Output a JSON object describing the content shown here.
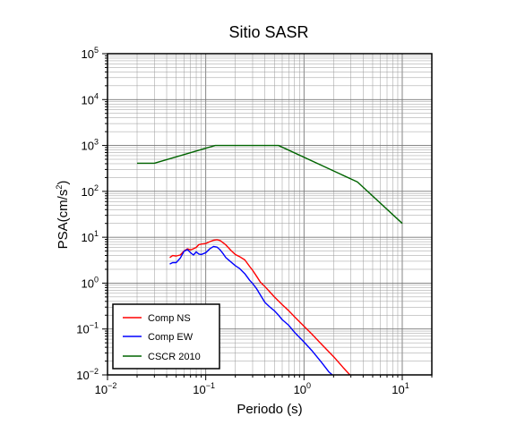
{
  "chart_data": {
    "type": "line",
    "title": "Sitio SASR",
    "xlabel": "Periodo (s)",
    "ylabel_base": "PSA(cm/s",
    "ylabel_sup": "2",
    "ylabel_tail": ")",
    "xscale": "log",
    "yscale": "log",
    "xlim": [
      0.01,
      20
    ],
    "ylim": [
      0.01,
      100000
    ],
    "x_ticks": [
      {
        "base": "10",
        "exp": "−2",
        "value": 0.01
      },
      {
        "base": "10",
        "exp": "−1",
        "value": 0.1
      },
      {
        "base": "10",
        "exp": "0",
        "value": 1
      },
      {
        "base": "10",
        "exp": "1",
        "value": 10
      }
    ],
    "y_ticks": [
      {
        "base": "10",
        "exp": "−2",
        "value": 0.01
      },
      {
        "base": "10",
        "exp": "−1",
        "value": 0.1
      },
      {
        "base": "10",
        "exp": "0",
        "value": 1
      },
      {
        "base": "10",
        "exp": "1",
        "value": 10
      },
      {
        "base": "10",
        "exp": "2",
        "value": 100
      },
      {
        "base": "10",
        "exp": "3",
        "value": 1000
      },
      {
        "base": "10",
        "exp": "4",
        "value": 10000
      },
      {
        "base": "10",
        "exp": "5",
        "value": 100000
      }
    ],
    "grid": true,
    "legend_position": "bottom-left",
    "series": [
      {
        "name": "Comp NS",
        "color": "#ff0000",
        "points": [
          [
            0.043,
            3.6
          ],
          [
            0.046,
            4.0
          ],
          [
            0.05,
            3.9
          ],
          [
            0.055,
            4.1
          ],
          [
            0.06,
            5.0
          ],
          [
            0.065,
            5.6
          ],
          [
            0.07,
            5.3
          ],
          [
            0.075,
            5.6
          ],
          [
            0.08,
            6.0
          ],
          [
            0.085,
            6.9
          ],
          [
            0.09,
            7.1
          ],
          [
            0.1,
            7.3
          ],
          [
            0.11,
            8.0
          ],
          [
            0.12,
            8.6
          ],
          [
            0.13,
            8.8
          ],
          [
            0.14,
            8.5
          ],
          [
            0.15,
            7.6
          ],
          [
            0.16,
            6.8
          ],
          [
            0.18,
            5.2
          ],
          [
            0.2,
            4.2
          ],
          [
            0.22,
            3.8
          ],
          [
            0.25,
            3.2
          ],
          [
            0.28,
            2.3
          ],
          [
            0.3,
            1.9
          ],
          [
            0.33,
            1.4
          ],
          [
            0.36,
            1.05
          ],
          [
            0.4,
            0.84
          ],
          [
            0.45,
            0.64
          ],
          [
            0.5,
            0.5
          ],
          [
            0.6,
            0.34
          ],
          [
            0.7,
            0.25
          ],
          [
            0.8,
            0.185
          ],
          [
            1.0,
            0.115
          ],
          [
            1.2,
            0.078
          ],
          [
            1.5,
            0.047
          ],
          [
            2.0,
            0.025
          ],
          [
            2.5,
            0.0145
          ],
          [
            3.0,
            0.0095
          ]
        ]
      },
      {
        "name": "Comp EW",
        "color": "#0000ff",
        "points": [
          [
            0.043,
            2.6
          ],
          [
            0.046,
            2.8
          ],
          [
            0.05,
            2.8
          ],
          [
            0.055,
            3.5
          ],
          [
            0.06,
            4.9
          ],
          [
            0.065,
            5.4
          ],
          [
            0.07,
            4.6
          ],
          [
            0.075,
            4.1
          ],
          [
            0.08,
            4.8
          ],
          [
            0.085,
            4.3
          ],
          [
            0.09,
            4.2
          ],
          [
            0.1,
            4.6
          ],
          [
            0.11,
            5.6
          ],
          [
            0.12,
            6.3
          ],
          [
            0.13,
            6.1
          ],
          [
            0.14,
            5.3
          ],
          [
            0.15,
            4.4
          ],
          [
            0.16,
            3.6
          ],
          [
            0.18,
            2.9
          ],
          [
            0.2,
            2.4
          ],
          [
            0.22,
            2.1
          ],
          [
            0.25,
            1.6
          ],
          [
            0.28,
            1.15
          ],
          [
            0.3,
            0.98
          ],
          [
            0.33,
            0.75
          ],
          [
            0.36,
            0.55
          ],
          [
            0.4,
            0.38
          ],
          [
            0.45,
            0.3
          ],
          [
            0.5,
            0.25
          ],
          [
            0.55,
            0.2
          ],
          [
            0.6,
            0.16
          ],
          [
            0.7,
            0.12
          ],
          [
            0.8,
            0.085
          ],
          [
            1.0,
            0.052
          ],
          [
            1.2,
            0.034
          ],
          [
            1.5,
            0.019
          ],
          [
            1.8,
            0.0115
          ],
          [
            2.0,
            0.0095
          ]
        ]
      },
      {
        "name": "CSCR 2010",
        "color": "#006400",
        "points": [
          [
            0.02,
            410
          ],
          [
            0.03,
            410
          ],
          [
            0.125,
            1000
          ],
          [
            0.55,
            1000
          ],
          [
            3.5,
            160
          ],
          [
            10.0,
            20
          ]
        ]
      }
    ]
  }
}
